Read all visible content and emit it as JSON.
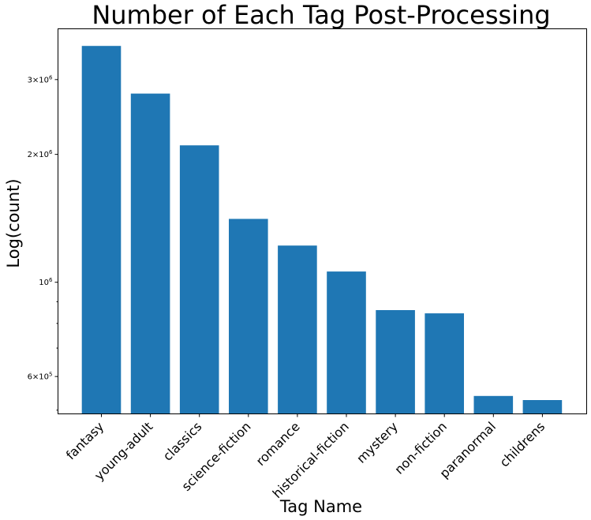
{
  "chart_data": {
    "type": "bar",
    "title": "Number of Each Tag Post-Processing",
    "xlabel": "Tag Name",
    "ylabel": "Log(count)",
    "yscale": "log",
    "ylim": [
      490000,
      3950000
    ],
    "grid": false,
    "bar_color": "#1f77b4",
    "categories": [
      "fantasy",
      "young-adult",
      "classics",
      "science-fiction",
      "romance",
      "historical-fiction",
      "mystery",
      "non-fiction",
      "paranormal",
      "childrens"
    ],
    "values": [
      3600000,
      2780000,
      2100000,
      1410000,
      1220000,
      1060000,
      860000,
      845000,
      540000,
      528000
    ],
    "y_major_ticks": [
      {
        "value": 1000000,
        "mantissa": "",
        "exp": "6",
        "label": "10⁶"
      },
      {
        "value": 600000,
        "mantissa": "6",
        "exp": "5",
        "label": "6×10⁵"
      },
      {
        "value": 2000000,
        "mantissa": "2",
        "exp": "6",
        "label": "2×10⁶"
      },
      {
        "value": 3000000,
        "mantissa": "3",
        "exp": "6",
        "label": "3×10⁶"
      }
    ],
    "y_minor_ticks": [
      500000,
      700000,
      800000,
      900000
    ]
  }
}
